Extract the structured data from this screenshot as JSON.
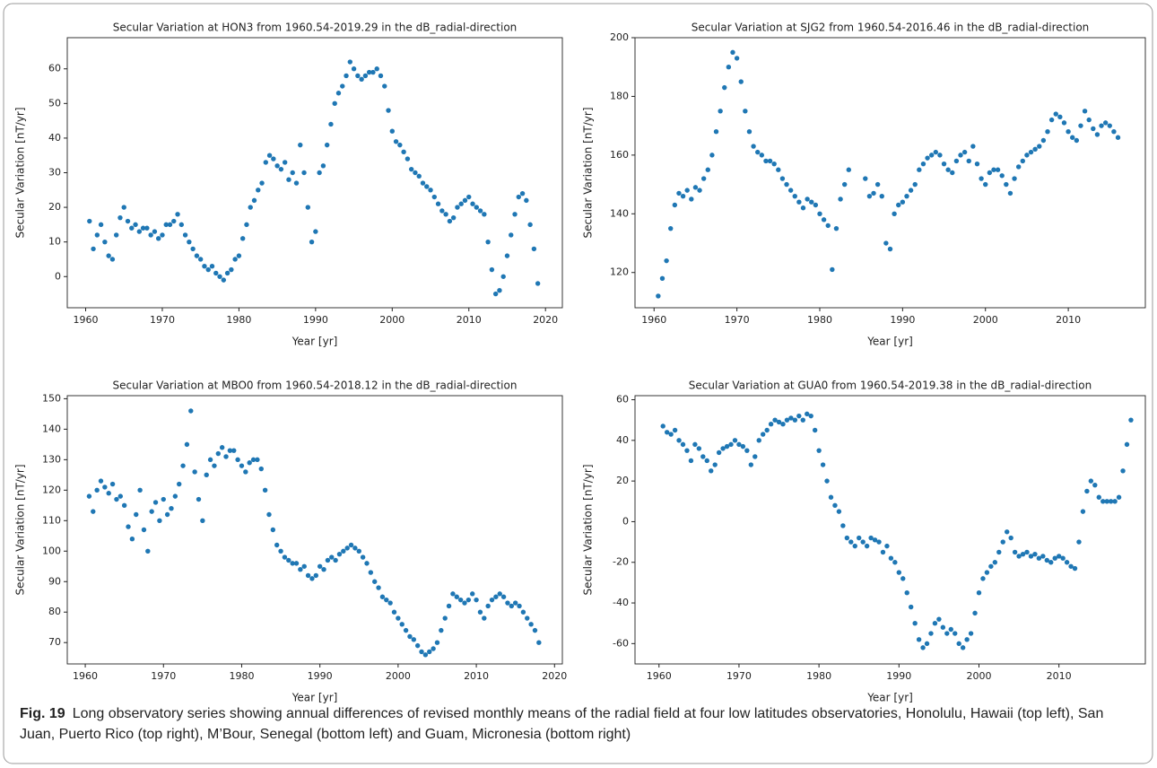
{
  "chart_data": [
    {
      "type": "scatter",
      "title": "Secular Variation at HON3 from 1960.54-2019.29 in the dB_radial-direction",
      "xlabel": "Year [yr]",
      "ylabel": "Secular Variation [nT/yr]",
      "color": "#1f77b4",
      "x": [
        1960.5,
        1961,
        1961.5,
        1962,
        1962.5,
        1963,
        1963.5,
        1964,
        1964.5,
        1965,
        1965.5,
        1966,
        1966.5,
        1967,
        1967.5,
        1968,
        1968.5,
        1969,
        1969.5,
        1970,
        1970.5,
        1971,
        1971.5,
        1972,
        1972.5,
        1973,
        1973.5,
        1974,
        1974.5,
        1975,
        1975.5,
        1976,
        1976.5,
        1977,
        1977.5,
        1978,
        1978.5,
        1979,
        1979.5,
        1980,
        1980.5,
        1981,
        1981.5,
        1982,
        1982.5,
        1983,
        1983.5,
        1984,
        1984.5,
        1985,
        1985.5,
        1986,
        1986.5,
        1987,
        1987.5,
        1988,
        1988.5,
        1989,
        1989.5,
        1990,
        1990.5,
        1991,
        1991.5,
        1992,
        1992.5,
        1993,
        1993.5,
        1994,
        1994.5,
        1995,
        1995.5,
        1996,
        1996.5,
        1997,
        1997.5,
        1998,
        1998.5,
        1999,
        1999.5,
        2000,
        2000.5,
        2001,
        2001.5,
        2002,
        2002.5,
        2003,
        2003.5,
        2004,
        2004.5,
        2005,
        2005.5,
        2006,
        2006.5,
        2007,
        2007.5,
        2008,
        2008.5,
        2009,
        2009.5,
        2010,
        2010.5,
        2011,
        2011.5,
        2012,
        2012.5,
        2013,
        2013.5,
        2014,
        2014.5,
        2015,
        2015.5,
        2016,
        2016.5,
        2017,
        2017.5,
        2018,
        2018.5,
        2019
      ],
      "values": [
        16,
        8,
        12,
        15,
        10,
        6,
        5,
        12,
        17,
        20,
        16,
        14,
        15,
        13,
        14,
        14,
        12,
        13,
        11,
        12,
        15,
        15,
        16,
        18,
        15,
        12,
        10,
        8,
        6,
        5,
        3,
        2,
        3,
        1,
        0,
        -1,
        1,
        2,
        5,
        6,
        11,
        15,
        20,
        22,
        25,
        27,
        33,
        35,
        34,
        32,
        31,
        33,
        28,
        30,
        27,
        38,
        30,
        20,
        10,
        13,
        30,
        32,
        38,
        44,
        50,
        53,
        55,
        58,
        62,
        60,
        58,
        57,
        58,
        59,
        59,
        60,
        58,
        55,
        48,
        42,
        39,
        38,
        36,
        34,
        31,
        30,
        29,
        27,
        26,
        25,
        23,
        21,
        19,
        18,
        16,
        17,
        20,
        21,
        22,
        23,
        21,
        20,
        19,
        18,
        10,
        2,
        -5,
        -4,
        0,
        6,
        12,
        18,
        23,
        24,
        22,
        15,
        8,
        -2
      ],
      "xlim": [
        1957.6,
        2022.2
      ],
      "ylim": [
        -9,
        69
      ],
      "xticks": [
        1960,
        1970,
        1980,
        1990,
        2000,
        2010,
        2020
      ],
      "yticks": [
        0,
        10,
        20,
        30,
        40,
        50,
        60
      ]
    },
    {
      "type": "scatter",
      "title": "Secular Variation at SJG2 from 1960.54-2016.46 in the dB_radial-direction",
      "xlabel": "Year [yr]",
      "ylabel": "Secular Variation [nT/yr]",
      "color": "#1f77b4",
      "x": [
        1960.5,
        1961,
        1961.5,
        1962,
        1962.5,
        1963,
        1963.5,
        1964,
        1964.5,
        1965,
        1965.5,
        1966,
        1966.5,
        1967,
        1967.5,
        1968,
        1968.5,
        1969,
        1969.5,
        1970,
        1970.5,
        1971,
        1971.5,
        1972,
        1972.5,
        1973,
        1973.5,
        1974,
        1974.5,
        1975,
        1975.5,
        1976,
        1976.5,
        1977,
        1977.5,
        1978,
        1978.5,
        1979,
        1979.5,
        1980,
        1980.5,
        1981,
        1981.5,
        1982,
        1982.5,
        1983,
        1983.5,
        1985.5,
        1986,
        1986.5,
        1987,
        1987.5,
        1988,
        1988.5,
        1989,
        1989.5,
        1990,
        1990.5,
        1991,
        1991.5,
        1992,
        1992.5,
        1993,
        1993.5,
        1994,
        1994.5,
        1995,
        1995.5,
        1996,
        1996.5,
        1997,
        1997.5,
        1998,
        1998.5,
        1999,
        1999.5,
        2000,
        2000.5,
        2001,
        2001.5,
        2002,
        2002.5,
        2003,
        2003.5,
        2004,
        2004.5,
        2005,
        2005.5,
        2006,
        2006.5,
        2007,
        2007.5,
        2008,
        2008.5,
        2009,
        2009.5,
        2010,
        2010.5,
        2011,
        2011.5,
        2012,
        2012.5,
        2013,
        2013.5,
        2014,
        2014.5,
        2015,
        2015.5,
        2016
      ],
      "values": [
        112,
        118,
        124,
        135,
        143,
        147,
        146,
        148,
        145,
        149,
        148,
        152,
        155,
        160,
        168,
        175,
        183,
        190,
        195,
        193,
        185,
        175,
        168,
        163,
        161,
        160,
        158,
        158,
        157,
        155,
        152,
        150,
        148,
        146,
        144,
        142,
        145,
        144,
        143,
        140,
        138,
        136,
        121,
        135,
        145,
        150,
        155,
        152,
        146,
        147,
        150,
        146,
        130,
        128,
        140,
        143,
        144,
        146,
        148,
        150,
        155,
        157,
        159,
        160,
        161,
        160,
        157,
        155,
        154,
        158,
        160,
        161,
        158,
        163,
        157,
        152,
        150,
        154,
        155,
        155,
        153,
        150,
        147,
        152,
        156,
        158,
        160,
        161,
        162,
        163,
        165,
        168,
        172,
        174,
        173,
        171,
        168,
        166,
        165,
        170,
        175,
        172,
        169,
        167,
        170,
        171,
        170,
        168,
        166
      ],
      "xlim": [
        1957.7,
        2019.3
      ],
      "ylim": [
        108,
        200
      ],
      "xticks": [
        1960,
        1970,
        1980,
        1990,
        2000,
        2010
      ],
      "yticks": [
        120,
        140,
        160,
        180,
        200
      ]
    },
    {
      "type": "scatter",
      "title": "Secular Variation at MBO0 from 1960.54-2018.12 in the dB_radial-direction",
      "xlabel": "Year [yr]",
      "ylabel": "Secular Variation [nT/yr]",
      "color": "#1f77b4",
      "x": [
        1960.5,
        1961,
        1961.5,
        1962,
        1962.5,
        1963,
        1963.5,
        1964,
        1964.5,
        1965,
        1965.5,
        1966,
        1966.5,
        1967,
        1967.5,
        1968,
        1968.5,
        1969,
        1969.5,
        1970,
        1970.5,
        1971,
        1971.5,
        1972,
        1972.5,
        1973,
        1973.5,
        1974,
        1974.5,
        1975,
        1975.5,
        1976,
        1976.5,
        1977,
        1977.5,
        1978,
        1978.5,
        1979,
        1979.5,
        1980,
        1980.5,
        1981,
        1981.5,
        1982,
        1982.5,
        1983,
        1983.5,
        1984,
        1984.5,
        1985,
        1985.5,
        1986,
        1986.5,
        1987,
        1987.5,
        1988,
        1988.5,
        1989,
        1989.5,
        1990,
        1990.5,
        1991,
        1991.5,
        1992,
        1992.5,
        1993,
        1993.5,
        1994,
        1994.5,
        1995,
        1995.5,
        1996,
        1996.5,
        1997,
        1997.5,
        1998,
        1998.5,
        1999,
        1999.5,
        2000,
        2000.5,
        2001,
        2001.5,
        2002,
        2002.5,
        2003,
        2003.5,
        2004,
        2004.5,
        2005,
        2005.5,
        2006,
        2006.5,
        2007,
        2007.5,
        2008,
        2008.5,
        2009,
        2009.5,
        2010,
        2010.5,
        2011,
        2011.5,
        2012,
        2012.5,
        2013,
        2013.5,
        2014,
        2014.5,
        2015,
        2015.5,
        2016,
        2016.5,
        2017,
        2017.5,
        2018
      ],
      "values": [
        118,
        113,
        120,
        123,
        121,
        119,
        122,
        117,
        118,
        115,
        108,
        104,
        112,
        120,
        107,
        100,
        113,
        116,
        110,
        117,
        112,
        114,
        118,
        122,
        128,
        135,
        146,
        126,
        117,
        110,
        125,
        130,
        128,
        132,
        134,
        131,
        133,
        133,
        130,
        128,
        126,
        129,
        130,
        130,
        127,
        120,
        112,
        107,
        102,
        100,
        98,
        97,
        96,
        96,
        94,
        95,
        92,
        91,
        92,
        95,
        94,
        97,
        98,
        97,
        99,
        100,
        101,
        102,
        101,
        100,
        98,
        96,
        93,
        90,
        88,
        85,
        84,
        83,
        80,
        78,
        76,
        74,
        72,
        71,
        69,
        67,
        66,
        67,
        68,
        70,
        74,
        78,
        82,
        86,
        85,
        84,
        83,
        84,
        86,
        84,
        80,
        78,
        82,
        84,
        85,
        86,
        85,
        83,
        82,
        83,
        82,
        80,
        78,
        76,
        74,
        70
      ],
      "xlim": [
        1957.7,
        2021
      ],
      "ylim": [
        63,
        151
      ],
      "xticks": [
        1960,
        1970,
        1980,
        1990,
        2000,
        2010,
        2020
      ],
      "yticks": [
        70,
        80,
        90,
        100,
        110,
        120,
        130,
        140,
        150
      ]
    },
    {
      "type": "scatter",
      "title": "Secular Variation at GUA0 from 1960.54-2019.38 in the dB_radial-direction",
      "xlabel": "Year [yr]",
      "ylabel": "Secular Variation [nT/yr]",
      "color": "#1f77b4",
      "x": [
        1960.5,
        1961,
        1961.5,
        1962,
        1962.5,
        1963,
        1963.5,
        1964,
        1964.5,
        1965,
        1965.5,
        1966,
        1966.5,
        1967,
        1967.5,
        1968,
        1968.5,
        1969,
        1969.5,
        1970,
        1970.5,
        1971,
        1971.5,
        1972,
        1972.5,
        1973,
        1973.5,
        1974,
        1974.5,
        1975,
        1975.5,
        1976,
        1976.5,
        1977,
        1977.5,
        1978,
        1978.5,
        1979,
        1979.5,
        1980,
        1980.5,
        1981,
        1981.5,
        1982,
        1982.5,
        1983,
        1983.5,
        1984,
        1984.5,
        1985,
        1985.5,
        1986,
        1986.5,
        1987,
        1987.5,
        1988,
        1988.5,
        1989,
        1989.5,
        1990,
        1990.5,
        1991,
        1991.5,
        1992,
        1992.5,
        1993,
        1993.5,
        1994,
        1994.5,
        1995,
        1995.5,
        1996,
        1996.5,
        1997,
        1997.5,
        1998,
        1998.5,
        1999,
        1999.5,
        2000,
        2000.5,
        2001,
        2001.5,
        2002,
        2002.5,
        2003,
        2003.5,
        2004,
        2004.5,
        2005,
        2005.5,
        2006,
        2006.5,
        2007,
        2007.5,
        2008,
        2008.5,
        2009,
        2009.5,
        2010,
        2010.5,
        2011,
        2011.5,
        2012,
        2012.5,
        2013,
        2013.5,
        2014,
        2014.5,
        2015,
        2015.5,
        2016,
        2016.5,
        2017,
        2017.5,
        2018,
        2018.5,
        2019
      ],
      "values": [
        47,
        44,
        43,
        45,
        40,
        38,
        35,
        30,
        38,
        36,
        32,
        30,
        25,
        28,
        34,
        36,
        37,
        38,
        40,
        38,
        37,
        35,
        28,
        32,
        40,
        43,
        45,
        48,
        50,
        49,
        48,
        50,
        51,
        50,
        52,
        50,
        53,
        52,
        45,
        35,
        28,
        20,
        12,
        8,
        5,
        -2,
        -8,
        -10,
        -12,
        -8,
        -10,
        -12,
        -8,
        -9,
        -10,
        -15,
        -12,
        -18,
        -20,
        -25,
        -28,
        -35,
        -42,
        -50,
        -58,
        -62,
        -60,
        -55,
        -50,
        -48,
        -52,
        -55,
        -53,
        -55,
        -60,
        -62,
        -58,
        -55,
        -45,
        -35,
        -28,
        -25,
        -22,
        -20,
        -15,
        -10,
        -5,
        -8,
        -15,
        -17,
        -16,
        -15,
        -17,
        -16,
        -18,
        -17,
        -19,
        -20,
        -18,
        -17,
        -18,
        -20,
        -22,
        -23,
        -10,
        5,
        15,
        20,
        18,
        12,
        10,
        10,
        10,
        10,
        12,
        25,
        38,
        50
      ],
      "xlim": [
        1957,
        2020.8
      ],
      "ylim": [
        -70,
        62
      ],
      "xticks": [
        1960,
        1970,
        1980,
        1990,
        2000,
        2010
      ],
      "yticks": [
        -60,
        -40,
        -20,
        0,
        20,
        40,
        60
      ]
    }
  ],
  "caption": {
    "label": "Fig. 19",
    "text": "Long observatory series showing annual differences of revised monthly means of the radial field at four low latitudes observatories, Honolulu, Hawaii (top left), San Juan, Puerto Rico (top right), M’Bour, Senegal (bottom left) and Guam, Micronesia (bottom right)"
  }
}
